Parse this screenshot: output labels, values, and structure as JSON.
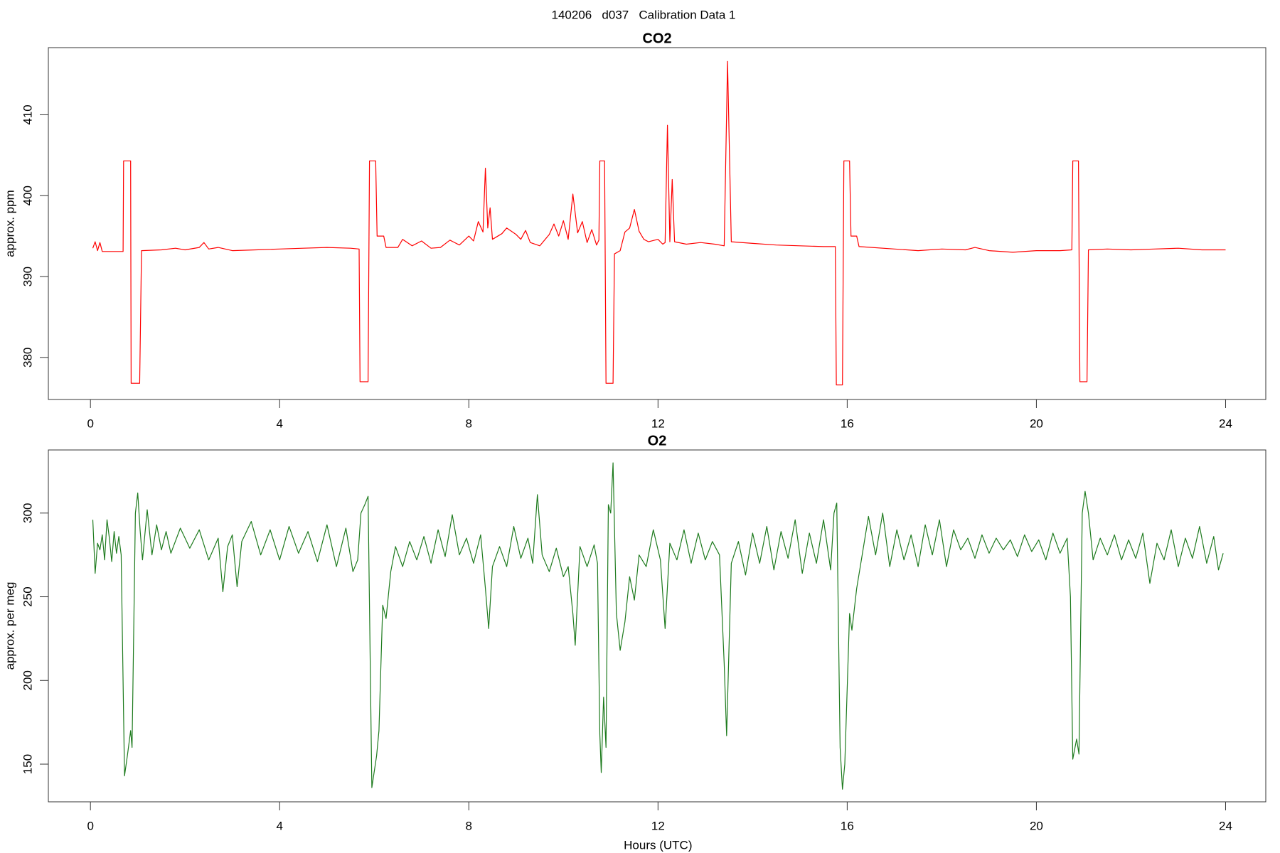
{
  "title": "140206   d037   Calibration Data 1",
  "chart_data": [
    {
      "type": "line",
      "title": "CO2",
      "ylabel": "approx. ppm",
      "color": "#ff0000",
      "xlim": [
        -0.89,
        24.85
      ],
      "xticks": [
        0,
        4,
        8,
        12,
        16,
        20,
        24
      ],
      "ylim": [
        374.8,
        418.3
      ],
      "yticks": [
        380,
        390,
        400,
        410
      ],
      "x": [
        0.05,
        0.1,
        0.15,
        0.2,
        0.25,
        0.4,
        0.69,
        0.7,
        0.85,
        0.86,
        1.04,
        1.08,
        1.5,
        1.8,
        2.0,
        2.3,
        2.4,
        2.5,
        2.7,
        3.0,
        3.5,
        4.0,
        4.5,
        5.0,
        5.5,
        5.68,
        5.7,
        5.87,
        5.9,
        6.03,
        6.06,
        6.2,
        6.25,
        6.5,
        6.6,
        6.8,
        7.0,
        7.2,
        7.4,
        7.6,
        7.8,
        8.0,
        8.1,
        8.2,
        8.3,
        8.35,
        8.4,
        8.45,
        8.5,
        8.7,
        8.8,
        9.0,
        9.1,
        9.2,
        9.3,
        9.5,
        9.7,
        9.8,
        9.9,
        10.0,
        10.1,
        10.2,
        10.3,
        10.4,
        10.5,
        10.6,
        10.7,
        10.75,
        10.77,
        10.87,
        10.9,
        11.05,
        11.08,
        11.2,
        11.3,
        11.4,
        11.5,
        11.6,
        11.7,
        11.8,
        12.0,
        12.1,
        12.15,
        12.2,
        12.25,
        12.3,
        12.35,
        12.6,
        12.9,
        13.2,
        13.4,
        13.47,
        13.55,
        14.0,
        14.5,
        15.0,
        15.5,
        15.75,
        15.77,
        15.9,
        15.93,
        16.05,
        16.08,
        16.2,
        16.25,
        17.0,
        17.5,
        18.0,
        18.5,
        18.7,
        19.0,
        19.5,
        20.0,
        20.5,
        20.75,
        20.77,
        20.89,
        20.92,
        21.07,
        21.1,
        21.5,
        22.0,
        22.5,
        23.0,
        23.5,
        24.0
      ],
      "values": [
        393.5,
        394.3,
        393.2,
        394.2,
        393.1,
        393.1,
        393.1,
        404.3,
        404.3,
        376.8,
        376.8,
        393.2,
        393.3,
        393.5,
        393.3,
        393.6,
        394.2,
        393.4,
        393.6,
        393.2,
        393.3,
        393.4,
        393.5,
        393.6,
        393.5,
        393.4,
        377,
        377,
        404.3,
        404.3,
        395,
        395,
        393.6,
        393.6,
        394.6,
        393.8,
        394.4,
        393.5,
        393.6,
        394.5,
        393.9,
        395.0,
        394.4,
        396.8,
        395.5,
        403.4,
        396,
        398.5,
        394.6,
        395.3,
        396,
        395.2,
        394.6,
        395.7,
        394.2,
        393.8,
        395.2,
        396.5,
        395.0,
        396.9,
        394.6,
        400.2,
        395.4,
        396.8,
        394.2,
        395.8,
        393.9,
        394.5,
        404.3,
        404.3,
        376.8,
        376.8,
        392.8,
        393.2,
        395.5,
        396,
        398.3,
        395.6,
        394.6,
        394.3,
        394.6,
        394.0,
        394.2,
        408.7,
        394.3,
        402,
        394.3,
        394.0,
        394.2,
        394.0,
        393.8,
        416.6,
        394.3,
        394.1,
        393.9,
        393.8,
        393.7,
        393.7,
        376.6,
        376.6,
        404.3,
        404.3,
        395,
        395,
        393.7,
        393.4,
        393.2,
        393.4,
        393.3,
        393.6,
        393.2,
        393.0,
        393.2,
        393.2,
        393.3,
        404.3,
        404.3,
        377,
        377,
        393.3,
        393.4,
        393.3,
        393.4,
        393.5,
        393.3,
        393.3
      ]
    },
    {
      "type": "line",
      "title": "O2",
      "ylabel": "approx. per meg",
      "xlabel": "Hours (UTC)",
      "color": "#1e7b1e",
      "xlim": [
        -0.89,
        24.85
      ],
      "xticks": [
        0,
        4,
        8,
        12,
        16,
        20,
        24
      ],
      "ylim": [
        127.5,
        337.7
      ],
      "yticks": [
        150,
        200,
        250,
        300
      ],
      "x": [
        0.05,
        0.1,
        0.15,
        0.2,
        0.25,
        0.3,
        0.35,
        0.4,
        0.45,
        0.5,
        0.55,
        0.6,
        0.65,
        0.72,
        0.78,
        0.85,
        0.88,
        0.95,
        1.0,
        1.05,
        1.1,
        1.2,
        1.3,
        1.4,
        1.5,
        1.6,
        1.7,
        1.9,
        2.1,
        2.3,
        2.5,
        2.7,
        2.8,
        2.9,
        3.0,
        3.1,
        3.2,
        3.4,
        3.6,
        3.8,
        4.0,
        4.2,
        4.4,
        4.6,
        4.8,
        5.0,
        5.2,
        5.4,
        5.55,
        5.65,
        5.72,
        5.8,
        5.87,
        5.95,
        6.05,
        6.1,
        6.18,
        6.25,
        6.35,
        6.45,
        6.6,
        6.75,
        6.9,
        7.05,
        7.2,
        7.35,
        7.5,
        7.65,
        7.8,
        7.95,
        8.1,
        8.25,
        8.35,
        8.42,
        8.5,
        8.65,
        8.8,
        8.95,
        9.1,
        9.25,
        9.35,
        9.45,
        9.55,
        9.7,
        9.85,
        10.0,
        10.1,
        10.2,
        10.25,
        10.35,
        10.5,
        10.65,
        10.72,
        10.77,
        10.8,
        10.85,
        10.9,
        10.95,
        11.0,
        11.05,
        11.12,
        11.2,
        11.3,
        11.4,
        11.5,
        11.6,
        11.75,
        11.9,
        12.05,
        12.15,
        12.25,
        12.4,
        12.55,
        12.7,
        12.85,
        13.0,
        13.15,
        13.3,
        13.4,
        13.45,
        13.55,
        13.7,
        13.85,
        14.0,
        14.15,
        14.3,
        14.45,
        14.6,
        14.75,
        14.9,
        15.05,
        15.2,
        15.35,
        15.5,
        15.65,
        15.72,
        15.78,
        15.85,
        15.9,
        15.95,
        16.05,
        16.1,
        16.2,
        16.3,
        16.45,
        16.6,
        16.75,
        16.9,
        17.05,
        17.2,
        17.35,
        17.5,
        17.65,
        17.8,
        17.95,
        18.1,
        18.25,
        18.4,
        18.55,
        18.7,
        18.85,
        19.0,
        19.15,
        19.3,
        19.45,
        19.6,
        19.75,
        19.9,
        20.05,
        20.2,
        20.35,
        20.5,
        20.65,
        20.72,
        20.77,
        20.85,
        20.9,
        20.97,
        21.03,
        21.1,
        21.2,
        21.35,
        21.5,
        21.65,
        21.8,
        21.95,
        22.1,
        22.25,
        22.4,
        22.55,
        22.7,
        22.85,
        23.0,
        23.15,
        23.3,
        23.45,
        23.6,
        23.75,
        23.85,
        23.95
      ],
      "values": [
        296,
        264,
        282,
        278,
        287,
        272,
        296,
        285,
        271,
        289,
        276,
        286,
        275,
        143,
        155,
        170,
        160,
        300,
        312,
        290,
        272,
        302,
        275,
        293,
        278,
        289,
        276,
        291,
        279,
        290,
        272,
        285,
        253,
        280,
        287,
        256,
        283,
        295,
        275,
        290,
        272,
        292,
        276,
        289,
        271,
        293,
        268,
        291,
        265,
        272,
        300,
        305,
        310,
        136,
        155,
        170,
        245,
        237,
        265,
        280,
        268,
        283,
        272,
        286,
        270,
        290,
        274,
        299,
        275,
        285,
        270,
        287,
        255,
        231,
        268,
        280,
        268,
        292,
        273,
        285,
        270,
        311,
        275,
        265,
        279,
        262,
        268,
        240,
        221,
        280,
        268,
        281,
        270,
        168,
        145,
        190,
        160,
        305,
        300,
        330,
        240,
        218,
        235,
        262,
        248,
        275,
        268,
        290,
        272,
        231,
        282,
        272,
        290,
        270,
        288,
        272,
        283,
        275,
        210,
        167,
        270,
        283,
        263,
        288,
        270,
        292,
        266,
        289,
        273,
        296,
        264,
        288,
        270,
        296,
        266,
        300,
        306,
        160,
        135,
        150,
        240,
        230,
        255,
        272,
        298,
        275,
        300,
        268,
        290,
        272,
        287,
        268,
        293,
        275,
        296,
        268,
        290,
        278,
        285,
        273,
        287,
        276,
        285,
        278,
        284,
        274,
        287,
        277,
        284,
        272,
        288,
        276,
        285,
        250,
        153,
        165,
        156,
        300,
        313,
        300,
        272,
        285,
        275,
        287,
        272,
        284,
        273,
        288,
        258,
        282,
        272,
        290,
        268,
        285,
        273,
        292,
        270,
        286,
        266,
        276
      ]
    }
  ]
}
